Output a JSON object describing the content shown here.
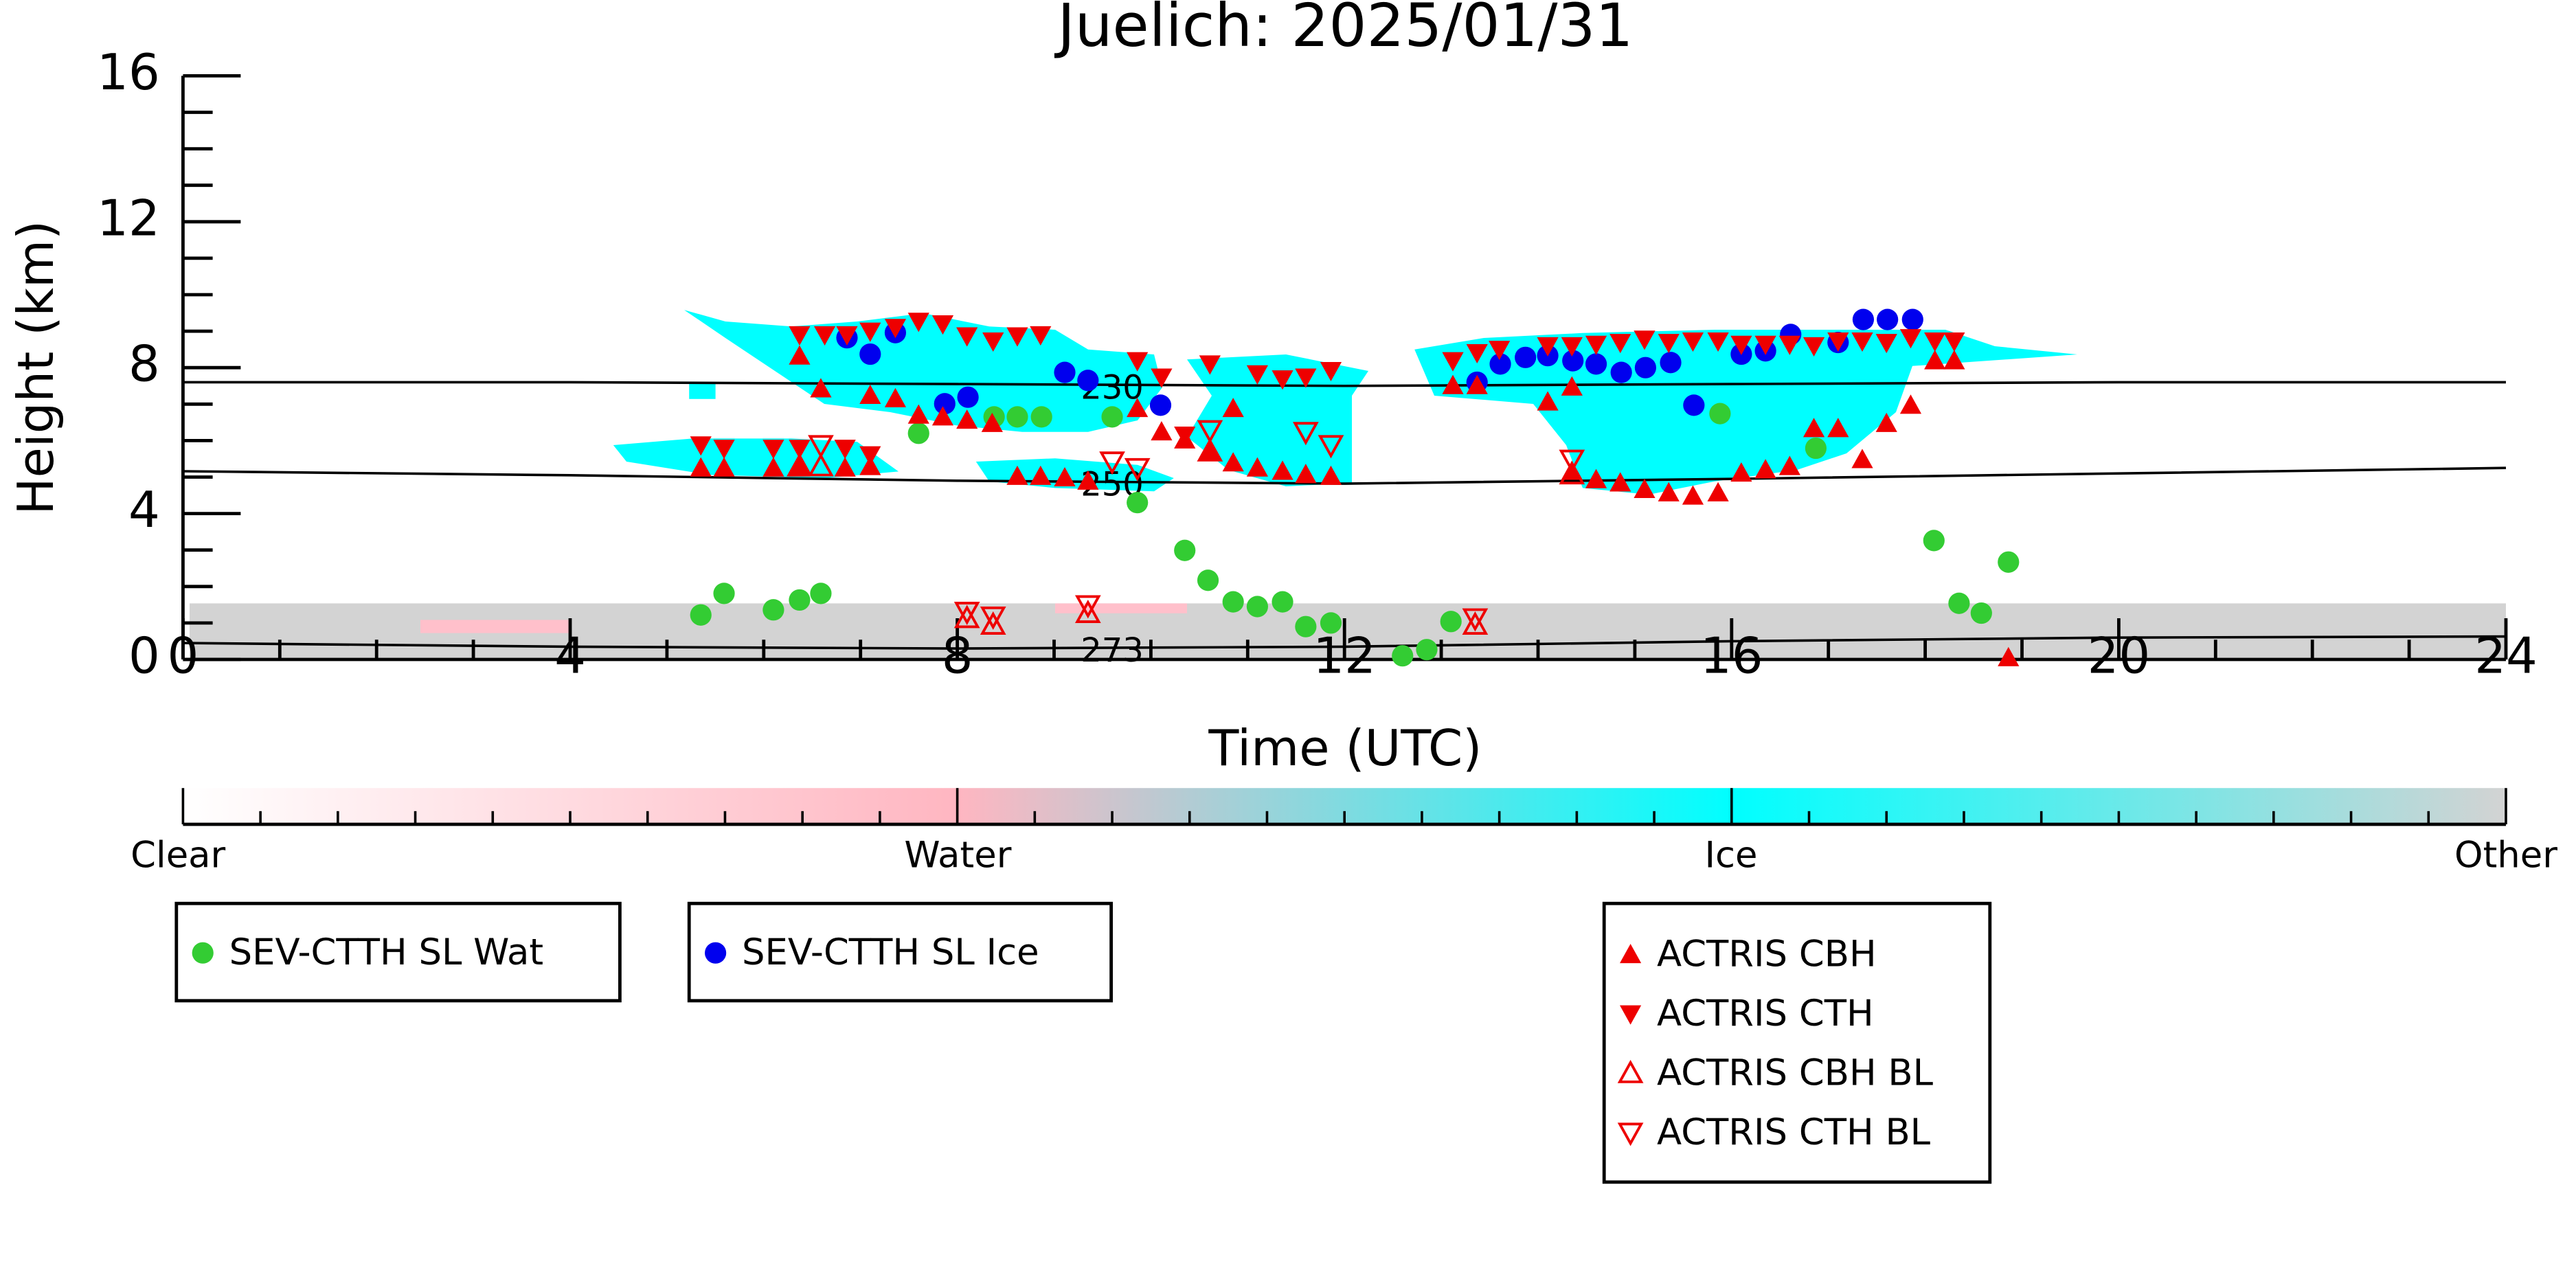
{
  "chart_data": {
    "type": "scatter",
    "title": "Juelich: 2025/01/31",
    "xlabel": "Time (UTC)",
    "ylabel": "Height (km)",
    "xlim": [
      0,
      24
    ],
    "xticks": [
      0,
      4,
      8,
      12,
      16,
      20,
      24
    ],
    "xminorticks": [
      1,
      2,
      3,
      5,
      6,
      7,
      9,
      10,
      11,
      13,
      14,
      15,
      17,
      18,
      19,
      21,
      22,
      23
    ],
    "ylim": [
      0,
      16
    ],
    "yticks": [
      0,
      4,
      8,
      12,
      16
    ],
    "yminorticks": [
      1,
      2,
      3,
      5,
      6,
      7,
      9,
      10,
      11,
      13,
      14,
      15
    ],
    "contours": [
      {
        "label": 230,
        "x": [
          0,
          4,
          8,
          12,
          16,
          20,
          24
        ],
        "values": [
          7.6,
          7.6,
          7.55,
          7.5,
          7.55,
          7.6,
          7.6
        ]
      },
      {
        "label": 250,
        "x": [
          0,
          4,
          8,
          12,
          16,
          20,
          24
        ],
        "values": [
          5.16,
          5.05,
          4.9,
          4.82,
          4.95,
          5.1,
          5.25
        ]
      },
      {
        "label": 273,
        "x": [
          0,
          4,
          8,
          12,
          16,
          20,
          24
        ],
        "values": [
          0.45,
          0.35,
          0.3,
          0.35,
          0.5,
          0.6,
          0.63
        ]
      }
    ],
    "colorbar": {
      "labels": [
        "Clear",
        "Water",
        "Ice",
        "Other"
      ],
      "colors": [
        "#ffffff",
        "#ffb6c1",
        "#00ffff",
        "#d3d3d3"
      ]
    },
    "series": [
      {
        "name": "SEV-CTTH SL Wat",
        "color": "#33cc33",
        "marker": "circle",
        "x": [
          5.35,
          5.59,
          6.1,
          6.37,
          6.59,
          7.6,
          8.38,
          8.62,
          8.87,
          9.6,
          9.86,
          10.35,
          10.59,
          10.85,
          11.1,
          11.36,
          11.6,
          11.86,
          12.6,
          12.85,
          13.1,
          15.88,
          16.87,
          18.09,
          18.35,
          18.58,
          18.86
        ],
        "values": [
          1.22,
          1.81,
          1.36,
          1.63,
          1.81,
          6.2,
          6.65,
          6.65,
          6.65,
          6.65,
          4.3,
          2.99,
          2.17,
          1.58,
          1.45,
          1.58,
          0.9,
          1.0,
          0.1,
          0.27,
          1.04,
          6.74,
          5.79,
          3.26,
          1.54,
          1.27,
          2.67
        ]
      },
      {
        "name": "SEV-CTTH SL Ice",
        "color": "#0000ee",
        "marker": "circle",
        "x": [
          6.86,
          7.1,
          7.36,
          7.87,
          8.11,
          9.11,
          9.35,
          10.1,
          13.37,
          13.61,
          13.87,
          14.1,
          14.36,
          14.6,
          14.86,
          15.11,
          15.37,
          15.61,
          16.1,
          16.35,
          16.61,
          17.1,
          17.36,
          17.61,
          17.87
        ],
        "values": [
          8.82,
          8.37,
          8.96,
          7.01,
          7.19,
          7.87,
          7.65,
          6.97,
          7.6,
          8.1,
          8.28,
          8.33,
          8.19,
          8.1,
          7.87,
          8.0,
          8.14,
          6.97,
          8.37,
          8.46,
          8.91,
          8.69,
          9.32,
          9.32,
          9.32
        ]
      },
      {
        "name": "ACTRIS CBH",
        "color": "#ee0000",
        "marker": "triangle-up",
        "x": [
          6.37,
          6.59,
          7.1,
          7.36,
          7.6,
          7.85,
          8.1,
          8.36,
          8.62,
          8.86,
          9.11,
          9.35,
          9.86,
          10.11,
          10.35,
          10.61,
          10.85,
          10.85,
          11.1,
          11.36,
          11.6,
          11.86,
          5.35,
          5.59,
          6.1,
          6.37,
          6.84,
          7.1,
          13.12,
          13.37,
          14.1,
          14.35,
          14.35,
          14.6,
          14.85,
          15.1,
          15.35,
          15.6,
          15.86,
          16.1,
          16.35,
          16.6,
          16.85,
          17.1,
          17.35,
          17.6,
          17.85,
          18.1,
          18.3,
          18.86
        ],
        "values": [
          8.32,
          7.42,
          7.24,
          7.15,
          6.7,
          6.65,
          6.56,
          6.47,
          5.02,
          5.02,
          4.98,
          4.89,
          6.88,
          6.24,
          6.02,
          5.7,
          6.88,
          5.39,
          5.25,
          5.16,
          5.07,
          5.02,
          5.25,
          5.25,
          5.25,
          5.25,
          5.25,
          5.29,
          7.51,
          7.51,
          7.06,
          7.47,
          5.16,
          4.93,
          4.84,
          4.66,
          4.57,
          4.48,
          4.57,
          5.11,
          5.2,
          5.29,
          6.33,
          6.33,
          5.48,
          6.47,
          6.97,
          8.19,
          8.19,
          0.05
        ]
      },
      {
        "name": "ACTRIS CTH",
        "color": "#ee0000",
        "marker": "triangle-down",
        "x": [
          6.37,
          6.63,
          6.86,
          7.1,
          7.36,
          7.6,
          7.85,
          8.1,
          8.37,
          8.62,
          8.86,
          9.86,
          10.11,
          10.35,
          10.61,
          11.1,
          11.36,
          11.6,
          11.86,
          5.35,
          5.59,
          6.1,
          6.37,
          6.84,
          7.1,
          13.12,
          13.37,
          13.6,
          14.1,
          14.35,
          14.6,
          14.85,
          15.1,
          15.35,
          15.6,
          15.86,
          16.1,
          16.35,
          16.6,
          16.85,
          17.1,
          17.35,
          17.6,
          17.85,
          18.1,
          18.3
        ],
        "values": [
          8.9,
          8.9,
          8.9,
          9.0,
          9.1,
          9.27,
          9.2,
          8.87,
          8.73,
          8.87,
          8.9,
          8.19,
          7.74,
          6.15,
          8.1,
          7.83,
          7.69,
          7.74,
          7.92,
          5.88,
          5.79,
          5.79,
          5.79,
          5.79,
          5.61,
          8.19,
          8.41,
          8.5,
          8.6,
          8.6,
          8.64,
          8.69,
          8.78,
          8.69,
          8.73,
          8.73,
          8.64,
          8.64,
          8.64,
          8.6,
          8.73,
          8.73,
          8.69,
          8.82,
          8.73,
          8.73
        ]
      },
      {
        "name": "ACTRIS CBH BL",
        "color": "#ee0000",
        "marker": "triangle-up-open",
        "x": [
          6.37,
          6.59,
          10.61,
          14.35,
          8.1,
          8.37,
          9.35,
          13.35
        ],
        "values": [
          5.29,
          5.29,
          5.7,
          5.07,
          1.13,
          0.95,
          1.27,
          0.95
        ]
      },
      {
        "name": "ACTRIS CTH BL",
        "color": "#ee0000",
        "marker": "triangle-down-open",
        "x": [
          6.59,
          9.6,
          9.86,
          10.61,
          11.6,
          11.86,
          14.35,
          8.1,
          8.37,
          9.35,
          13.35
        ],
        "values": [
          5.88,
          5.43,
          5.25,
          6.29,
          6.24,
          5.88,
          5.48,
          1.31,
          1.18,
          1.49,
          1.13
        ]
      }
    ]
  }
}
